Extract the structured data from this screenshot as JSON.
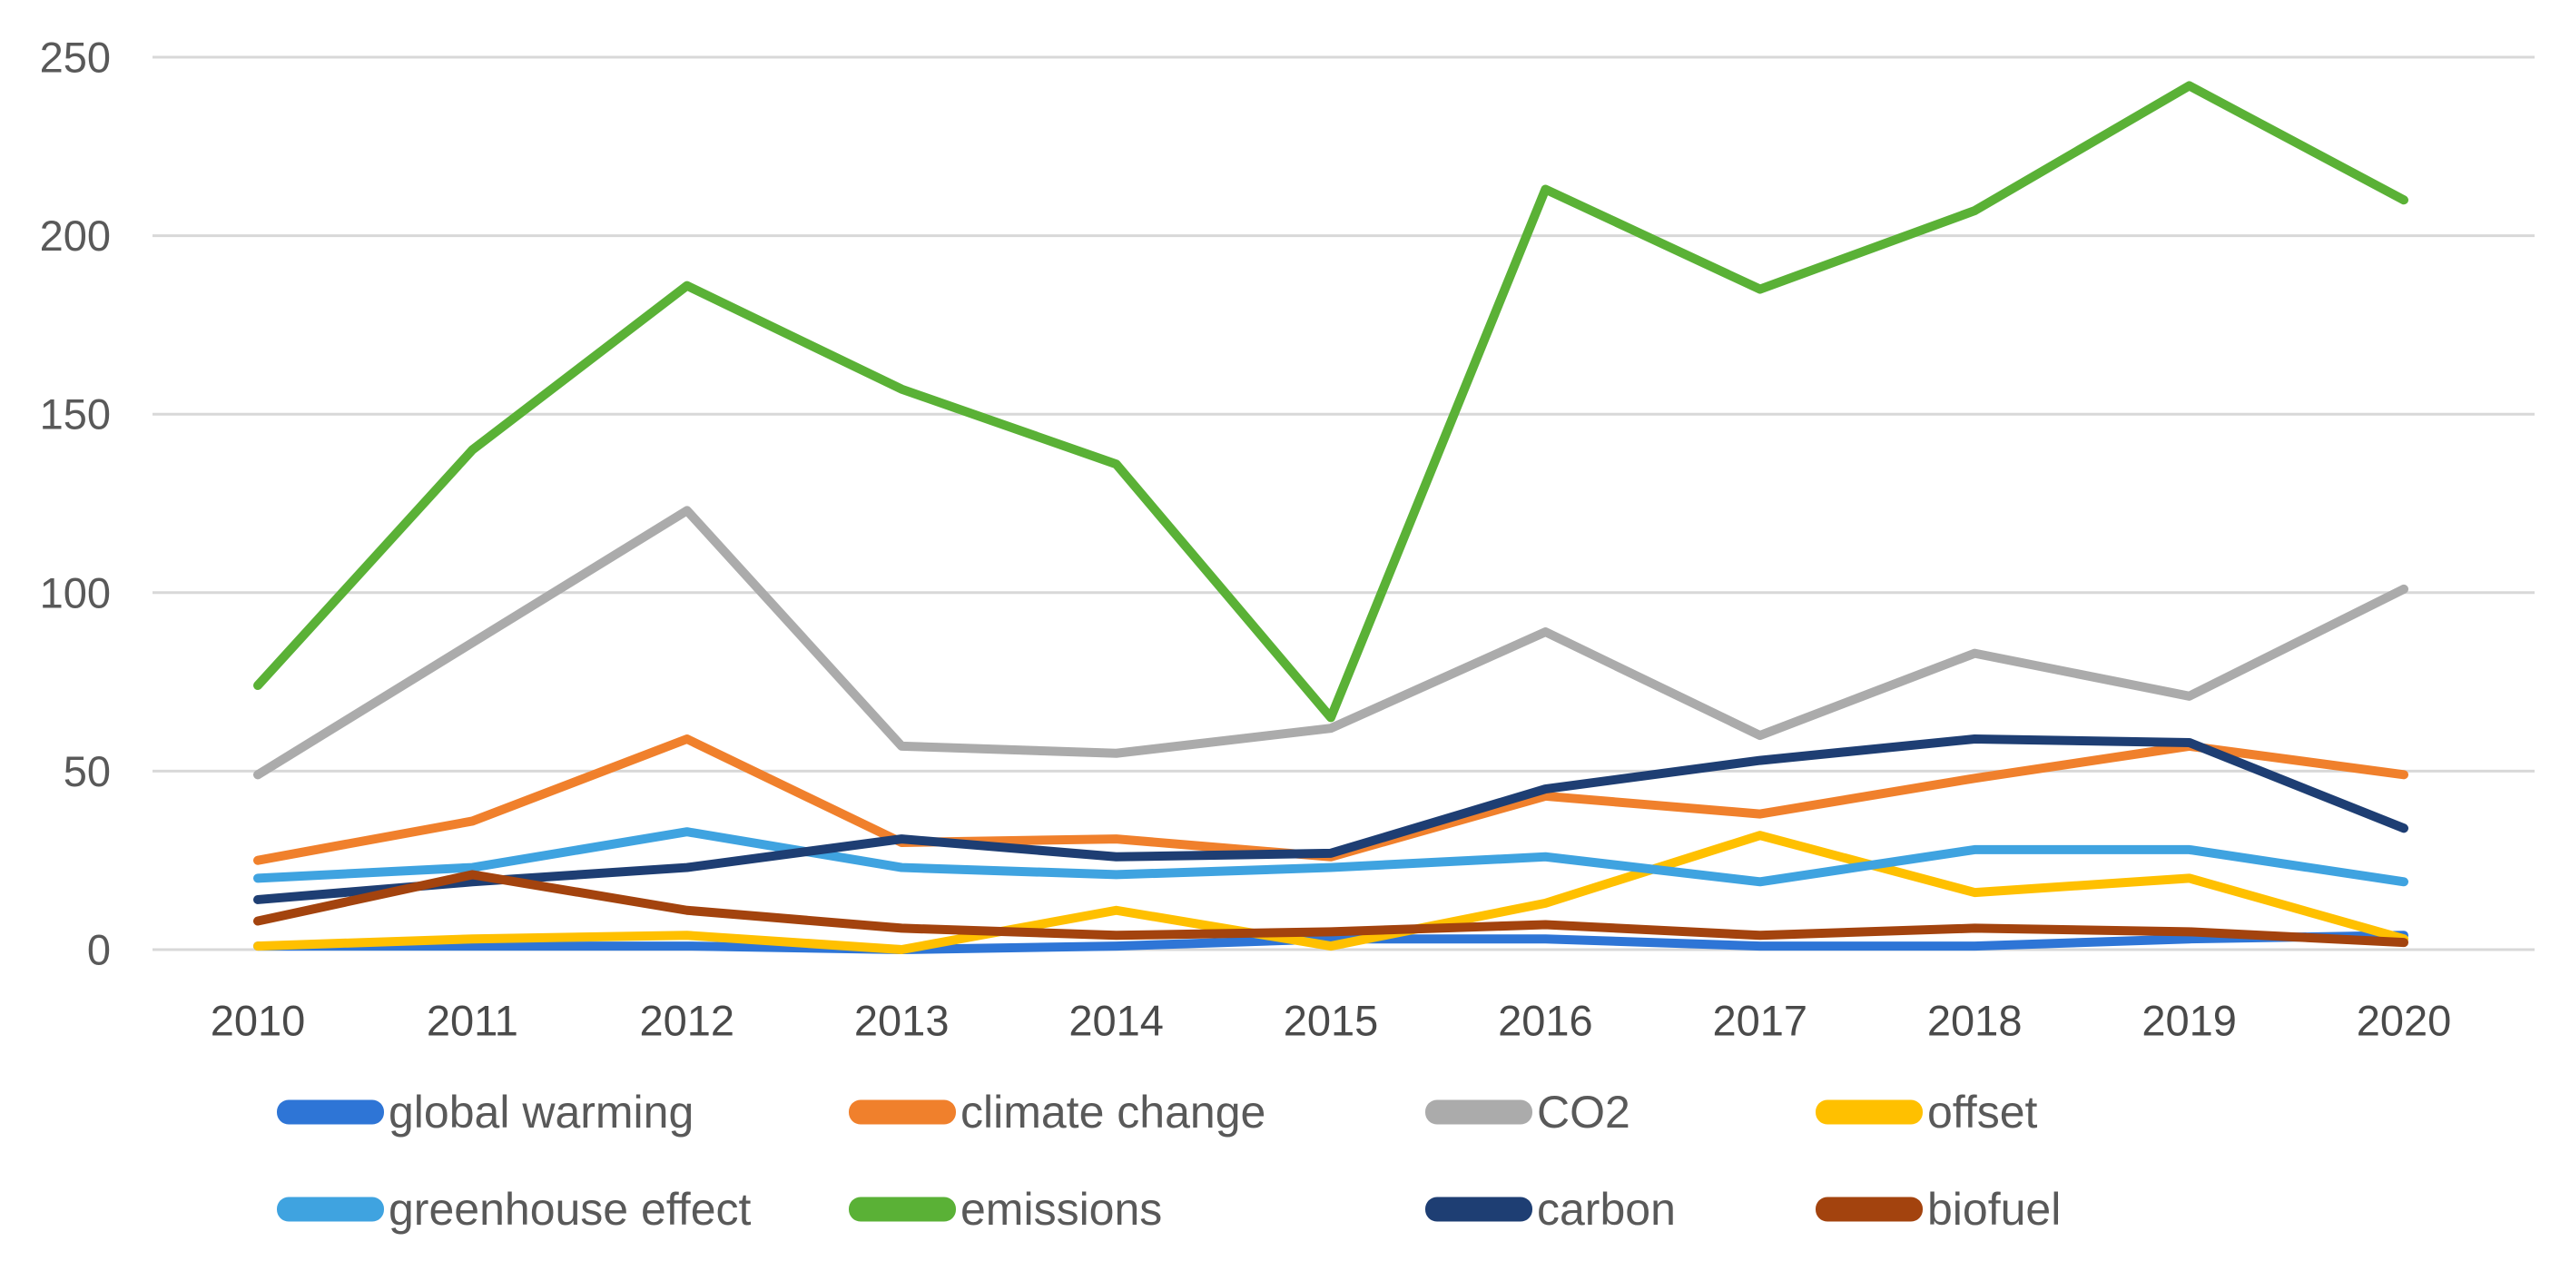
{
  "chart_data": {
    "type": "line",
    "title": "",
    "xlabel": "",
    "ylabel": "",
    "x": [
      "2010",
      "2011",
      "2012",
      "2013",
      "2014",
      "2015",
      "2016",
      "2017",
      "2018",
      "2019",
      "2020"
    ],
    "ylim": [
      0,
      250
    ],
    "yticks": [
      0,
      50,
      100,
      150,
      200,
      250
    ],
    "grid": true,
    "legend_position": "bottom",
    "series": [
      {
        "name": "global warming",
        "color": "#2E75D6",
        "values": [
          1,
          1,
          1,
          0,
          1,
          3,
          3,
          1,
          1,
          3,
          4
        ]
      },
      {
        "name": "climate change",
        "color": "#F0802C",
        "values": [
          25,
          36,
          59,
          30,
          31,
          26,
          43,
          38,
          48,
          57,
          49
        ]
      },
      {
        "name": "CO2",
        "color": "#ABABAB",
        "values": [
          49,
          86,
          123,
          57,
          55,
          62,
          89,
          60,
          83,
          71,
          101
        ]
      },
      {
        "name": "offset",
        "color": "#FFC000",
        "values": [
          1,
          3,
          4,
          0,
          11,
          1,
          13,
          32,
          16,
          20,
          3
        ]
      },
      {
        "name": "greenhouse effect",
        "color": "#3FA3E0",
        "values": [
          20,
          23,
          33,
          23,
          21,
          23,
          26,
          19,
          28,
          28,
          19
        ]
      },
      {
        "name": "emissions",
        "color": "#5AB136",
        "values": [
          74,
          140,
          186,
          157,
          136,
          65,
          213,
          185,
          207,
          242,
          210
        ]
      },
      {
        "name": "carbon",
        "color": "#1E3E73",
        "values": [
          14,
          19,
          23,
          31,
          26,
          27,
          45,
          53,
          59,
          58,
          34
        ]
      },
      {
        "name": "biofuel",
        "color": "#A3430E",
        "values": [
          8,
          21,
          11,
          6,
          4,
          5,
          7,
          4,
          6,
          5,
          2
        ]
      }
    ],
    "legend_rows": [
      [
        "global warming",
        "climate change",
        "CO2",
        "offset"
      ],
      [
        "greenhouse effect",
        "emissions",
        "carbon",
        "biofuel"
      ]
    ],
    "colors": {
      "gridline": "#D8D8D8",
      "tick_label": "#595959",
      "x_label": "#4A4A4A",
      "legend_text": "#595959",
      "background": "#FFFFFF"
    }
  }
}
